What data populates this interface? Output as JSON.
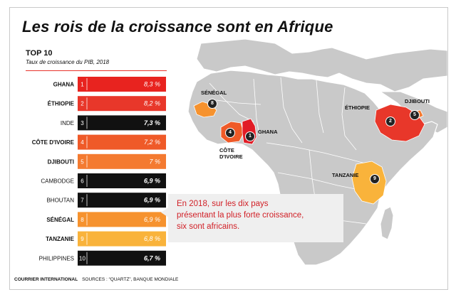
{
  "header": {
    "title": "Les rois de la croissance sont en Afrique"
  },
  "chart_data": {
    "type": "bar",
    "title": "TOP 10",
    "subtitle": "Taux de croissance du PIB, 2018",
    "categories": [
      "GHANA",
      "ÉTHIOPIE",
      "INDE",
      "CÔTE D'IVOIRE",
      "DJIBOUTI",
      "CAMBODGE",
      "BHOUTAN",
      "SÉNÉGAL",
      "TANZANIE",
      "PHILIPPINES"
    ],
    "ranks": [
      "1",
      "2",
      "3",
      "4",
      "5",
      "6",
      "7",
      "8",
      "9",
      "10"
    ],
    "values": [
      8.3,
      8.2,
      7.3,
      7.2,
      7.0,
      6.9,
      6.9,
      6.9,
      6.8,
      6.7
    ],
    "value_labels": [
      "8,3 %",
      "8,2 %",
      "7,3 %",
      "7,2 %",
      "7 %",
      "6,9 %",
      "6,9 %",
      "6,9 %",
      "6,8 %",
      "6,7 %"
    ],
    "bar_colors": [
      "#e8231f",
      "#e8372a",
      "#111111",
      "#ef5a28",
      "#f47a30",
      "#111111",
      "#111111",
      "#f6922e",
      "#f9b33b",
      "#111111"
    ],
    "label_bold": [
      true,
      true,
      false,
      true,
      true,
      false,
      false,
      true,
      true,
      false
    ],
    "african_colors": {
      "Ghana": "#e11c25",
      "Éthiopie": "#e8372a",
      "Côte d'Ivoire": "#ef5a28",
      "Djibouti": "#f47a30",
      "Sénégal": "#f6922e",
      "Tanzanie": "#f9b33b"
    },
    "map_base_color": "#c9c9c9",
    "xlabel": "",
    "ylabel": ""
  },
  "map": {
    "labels": {
      "senegal": "SÉNÉGAL",
      "ethiopie": "ÉTHIOPIE",
      "djibouti": "DJIBOUTI",
      "ghana": "GHANA",
      "cote_line1": "CÔTE",
      "cote_line2": "D'IVOIRE",
      "tanzanie": "TANZANIE"
    },
    "badges": {
      "ghana": "1",
      "ethiopie": "2",
      "cote": "4",
      "djibouti": "5",
      "senegal": "8",
      "tanzanie": "9"
    }
  },
  "callout": {
    "line1": "En 2018, sur les dix pays",
    "line2": "présentant la plus forte croissance,",
    "line3": "six sont africains."
  },
  "footer": {
    "org": "COURRIER INTERNATIONAL",
    "sources": "SOURCES : “QUARTZ”, BANQUE MONDIALE"
  }
}
